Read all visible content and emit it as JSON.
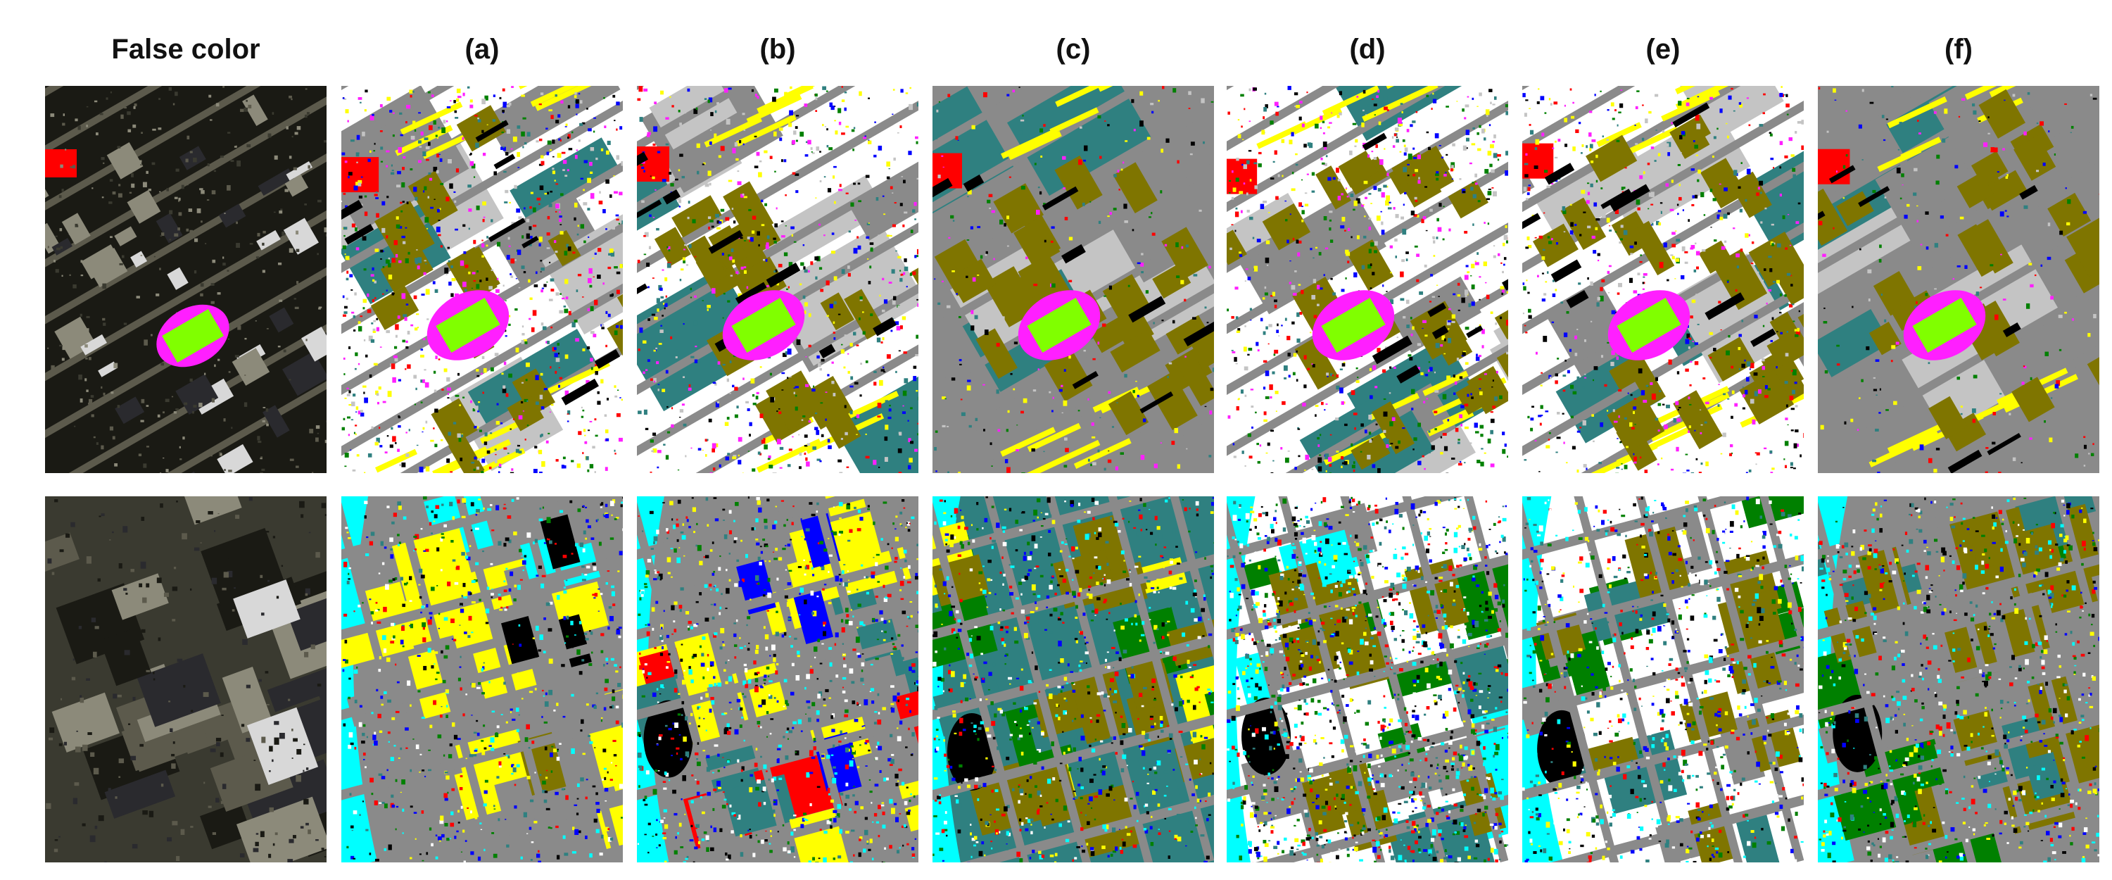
{
  "column_titles": [
    "False color",
    "(a)",
    "(b)",
    "(c)",
    "(d)",
    "(e)",
    "(f)"
  ],
  "rows": 2,
  "class_colors": {
    "olive": "#7f7500",
    "yellow": "#ffff00",
    "teal": "#2f8080",
    "gray": "#8a8a8a",
    "light_gray": "#c4c4c4",
    "white": "#ffffff",
    "black": "#000000",
    "red": "#ff0000",
    "magenta": "#ff1fff",
    "lime": "#80ff00",
    "cyan": "#00ffff",
    "blue": "#0000ff",
    "green": "#008000"
  },
  "false_color_palette": [
    "#1a1a14",
    "#3a3a30",
    "#5c5a4c",
    "#8c8a7a",
    "#d8d8d8",
    "#2a2a2e"
  ]
}
